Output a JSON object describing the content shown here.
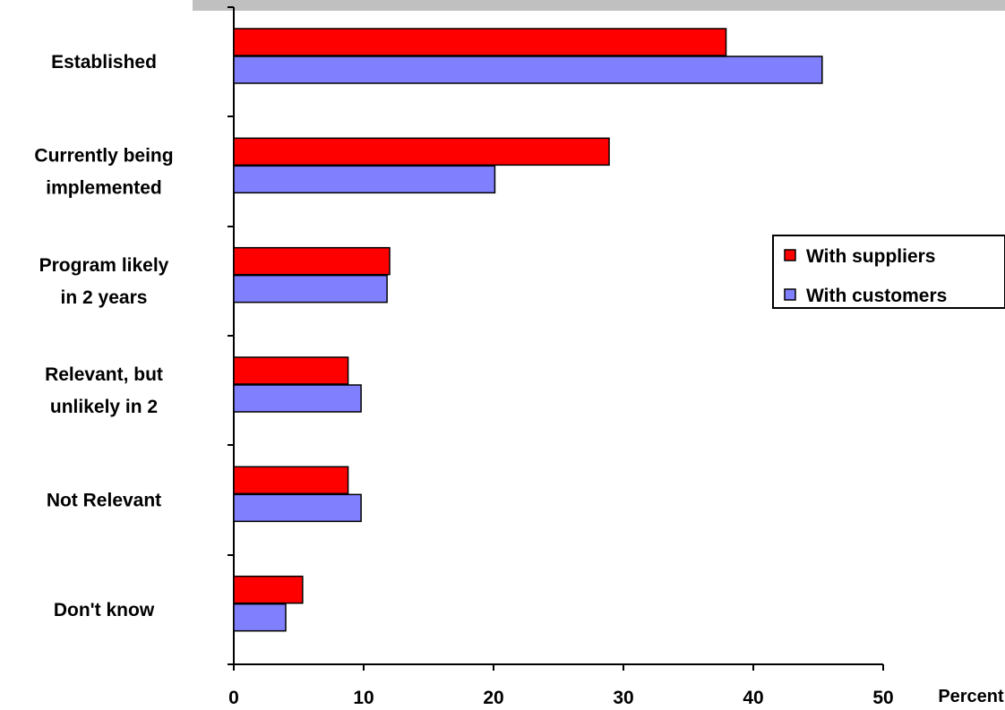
{
  "chart_data": {
    "type": "bar",
    "orientation": "horizontal",
    "categories": [
      [
        "Established"
      ],
      [
        "Currently being",
        "implemented"
      ],
      [
        "Program likely",
        "in 2 years"
      ],
      [
        "Relevant, but",
        "unlikely in 2"
      ],
      [
        "Not Relevant"
      ],
      [
        "Don't know"
      ]
    ],
    "series": [
      {
        "name": "With suppliers",
        "color": "#ff0000",
        "values": [
          37.9,
          28.9,
          12.0,
          8.8,
          8.8,
          5.3
        ]
      },
      {
        "name": "With customers",
        "color": "#8080ff",
        "values": [
          45.3,
          20.1,
          11.8,
          9.8,
          9.8,
          4.0
        ]
      }
    ],
    "xlabel": "Percent",
    "xlim": [
      0,
      50
    ],
    "xticks": [
      "0",
      "10",
      "20",
      "30",
      "40",
      "50"
    ],
    "grid": false,
    "legend_position": "right"
  }
}
